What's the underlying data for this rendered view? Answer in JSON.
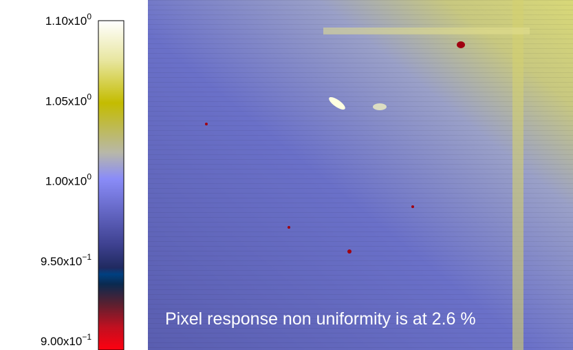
{
  "colorbar": {
    "range": [
      0.9,
      1.1
    ],
    "ticks": [
      {
        "value": 1.1,
        "mantissa": "1.10x10",
        "exponent": "0"
      },
      {
        "value": 1.05,
        "mantissa": "1.05x10",
        "exponent": "0"
      },
      {
        "value": 1.0,
        "mantissa": "1.00x10",
        "exponent": "0"
      },
      {
        "value": 0.95,
        "mantissa": "9.50x10",
        "exponent": "−1"
      },
      {
        "value": 0.9,
        "mantissa": "9.00x10",
        "exponent": "−1"
      }
    ]
  },
  "annotation": "Pixel response non uniformity is at 2.6 %"
}
